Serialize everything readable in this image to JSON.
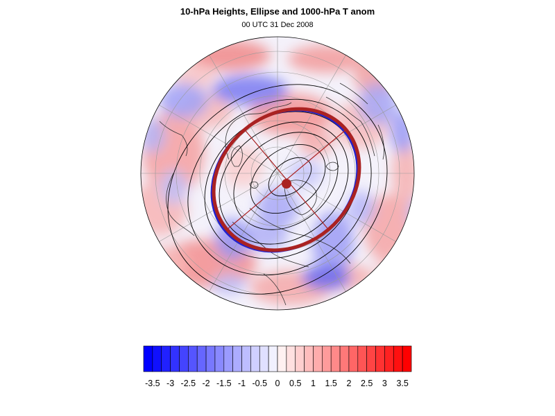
{
  "title": "10-hPa Heights, Ellipse and 1000-hPa T anom",
  "subtitle": "00 UTC 31 Dec 2008",
  "colors": {
    "neg_max": "#0000ff",
    "pos_max": "#ff0000",
    "ellipse": "#aa2222",
    "contour": "#000000",
    "coast": "#333333"
  },
  "colorbar": {
    "min": -3.75,
    "max": 3.75,
    "step": 0.25,
    "labels": [
      "-3.5",
      "-3",
      "-2.5",
      "-2",
      "-1.5",
      "-1",
      "-0.5",
      "0",
      "0.5",
      "1",
      "1.5",
      "2",
      "2.5",
      "3",
      "3.5"
    ]
  },
  "ellipse": {
    "center_label": "vortex-center"
  }
}
